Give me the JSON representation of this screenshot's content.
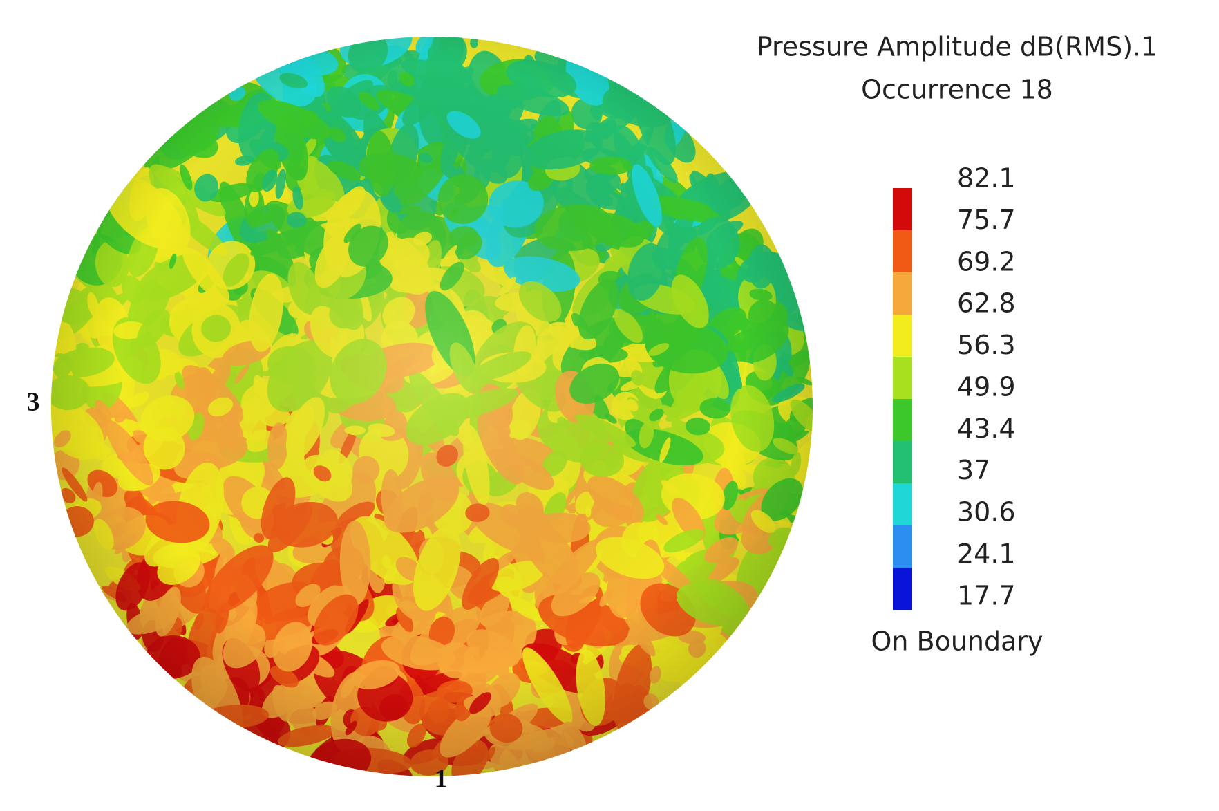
{
  "legend": {
    "title": "Pressure Amplitude dB(RMS).1",
    "subtitle": "Occurrence 18",
    "levels": [
      82.1,
      75.7,
      69.2,
      62.8,
      56.3,
      49.9,
      43.4,
      37,
      30.6,
      24.1,
      17.7
    ],
    "colors": [
      "#d20a0a",
      "#f05a14",
      "#f7a83a",
      "#f2ec1e",
      "#a6e01e",
      "#3cc82a",
      "#22c070",
      "#1ed6d6",
      "#2a8ef0",
      "#0a14d8"
    ],
    "footer": "On Boundary"
  },
  "axis_labels": {
    "left": "3",
    "bottom": "1"
  }
}
